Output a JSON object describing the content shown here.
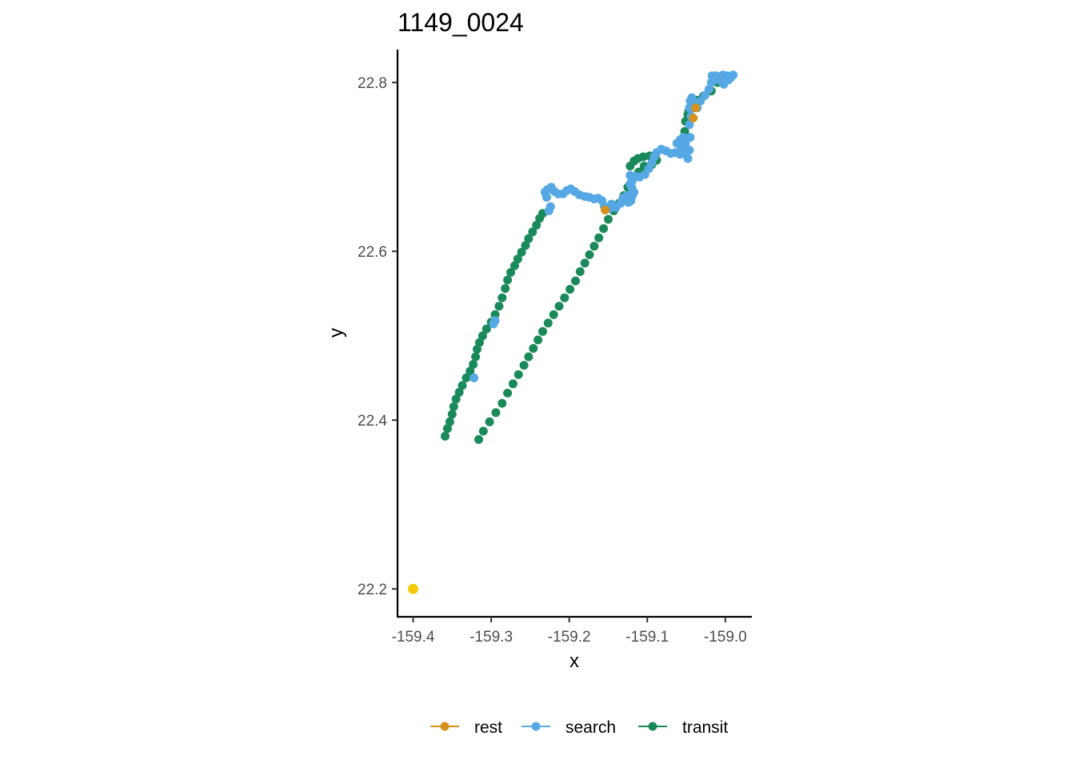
{
  "chart_data": {
    "type": "scatter",
    "title": "1149_0024",
    "xlabel": "x",
    "ylabel": "y",
    "xlim": [
      -159.42,
      -158.966
    ],
    "ylim": [
      22.167,
      22.839
    ],
    "x_ticks": [
      -159.4,
      -159.3,
      -159.2,
      -159.1,
      -159.0
    ],
    "x_tick_labels": [
      "-159.4",
      "-159.3",
      "-159.2",
      "-159.1",
      "-159.0"
    ],
    "y_ticks": [
      22.2,
      22.4,
      22.6,
      22.8
    ],
    "y_tick_labels": [
      "22.2",
      "22.4",
      "22.6",
      "22.8"
    ],
    "grid": false,
    "legend_position": "bottom",
    "colors": {
      "rest": "#D4921D",
      "search": "#56A8E4",
      "transit": "#1B8A5A",
      "origin": "#F5CA0B"
    },
    "legend": [
      {
        "label": "rest",
        "color": "#D4921D"
      },
      {
        "label": "search",
        "color": "#56A8E4"
      },
      {
        "label": "transit",
        "color": "#1B8A5A"
      }
    ],
    "extra_points": [
      {
        "x": -159.4,
        "y": 22.2,
        "color": "#F5CA0B"
      }
    ],
    "series": [
      {
        "name": "transit",
        "color": "#1B8A5A",
        "points": [
          [
            -159.359,
            22.381
          ],
          [
            -159.356,
            22.39
          ],
          [
            -159.353,
            22.398
          ],
          [
            -159.35,
            22.407
          ],
          [
            -159.348,
            22.416
          ],
          [
            -159.345,
            22.425
          ],
          [
            -159.341,
            22.433
          ],
          [
            -159.337,
            22.441
          ],
          [
            -159.332,
            22.45
          ],
          [
            -159.327,
            22.458
          ],
          [
            -159.323,
            22.466
          ],
          [
            -159.32,
            22.475
          ],
          [
            -159.318,
            22.484
          ],
          [
            -159.315,
            22.492
          ],
          [
            -159.311,
            22.5
          ],
          [
            -159.306,
            22.508
          ],
          [
            -159.3,
            22.516
          ],
          [
            -159.295,
            22.525
          ],
          [
            -159.29,
            22.535
          ],
          [
            -159.286,
            22.545
          ],
          [
            -159.282,
            22.556
          ],
          [
            -159.279,
            22.566
          ],
          [
            -159.275,
            22.575
          ],
          [
            -159.27,
            22.583
          ],
          [
            -159.266,
            22.591
          ],
          [
            -159.261,
            22.599
          ],
          [
            -159.256,
            22.607
          ],
          [
            -159.252,
            22.615
          ],
          [
            -159.247,
            22.623
          ],
          [
            -159.242,
            22.631
          ],
          [
            -159.238,
            22.639
          ],
          [
            -159.234,
            22.645
          ],
          [
            -159.316,
            22.377
          ],
          [
            -159.31,
            22.387
          ],
          [
            -159.302,
            22.398
          ],
          [
            -159.294,
            22.409
          ],
          [
            -159.286,
            22.42
          ],
          [
            -159.279,
            22.432
          ],
          [
            -159.272,
            22.443
          ],
          [
            -159.265,
            22.454
          ],
          [
            -159.258,
            22.465
          ],
          [
            -159.252,
            22.475
          ],
          [
            -159.246,
            22.485
          ],
          [
            -159.24,
            22.495
          ],
          [
            -159.234,
            22.505
          ],
          [
            -159.227,
            22.515
          ],
          [
            -159.22,
            22.525
          ],
          [
            -159.213,
            22.535
          ],
          [
            -159.206,
            22.545
          ],
          [
            -159.199,
            22.555
          ],
          [
            -159.192,
            22.565
          ],
          [
            -159.186,
            22.576
          ],
          [
            -159.18,
            22.586
          ],
          [
            -159.174,
            22.596
          ],
          [
            -159.168,
            22.606
          ],
          [
            -159.162,
            22.616
          ],
          [
            -159.156,
            22.627
          ],
          [
            -159.15,
            22.638
          ],
          [
            -159.143,
            22.648
          ],
          [
            -159.136,
            22.657
          ],
          [
            -159.13,
            22.666
          ],
          [
            -159.125,
            22.676
          ],
          [
            -159.119,
            22.685
          ],
          [
            -159.111,
            22.694
          ],
          [
            -159.104,
            22.701
          ],
          [
            -159.094,
            22.703
          ],
          [
            -159.088,
            22.708
          ],
          [
            -159.097,
            22.713
          ],
          [
            -159.105,
            22.712
          ],
          [
            -159.112,
            22.71
          ],
          [
            -159.117,
            22.707
          ],
          [
            -159.122,
            22.701
          ],
          [
            -159.053,
            22.733
          ],
          [
            -159.052,
            22.742
          ],
          [
            -159.051,
            22.754
          ],
          [
            -159.048,
            22.762
          ],
          [
            -159.047,
            22.766
          ],
          [
            -159.044,
            22.773
          ],
          [
            -159.036,
            22.779
          ],
          [
            -159.028,
            22.784
          ],
          [
            -159.018,
            22.79
          ],
          [
            -159.01,
            22.8
          ]
        ]
      },
      {
        "name": "search",
        "color": "#56A8E4",
        "points": [
          [
            -159.322,
            22.45
          ],
          [
            -159.297,
            22.514
          ],
          [
            -159.295,
            22.518
          ],
          [
            -159.226,
            22.648
          ],
          [
            -159.224,
            22.653
          ],
          [
            -159.229,
            22.664
          ],
          [
            -159.231,
            22.67
          ],
          [
            -159.228,
            22.673
          ],
          [
            -159.223,
            22.676
          ],
          [
            -159.219,
            22.671
          ],
          [
            -159.214,
            22.668
          ],
          [
            -159.208,
            22.668
          ],
          [
            -159.203,
            22.672
          ],
          [
            -159.198,
            22.674
          ],
          [
            -159.193,
            22.671
          ],
          [
            -159.187,
            22.667
          ],
          [
            -159.18,
            22.665
          ],
          [
            -159.174,
            22.664
          ],
          [
            -159.168,
            22.662
          ],
          [
            -159.163,
            22.663
          ],
          [
            -159.158,
            22.66
          ],
          [
            -159.155,
            22.653
          ],
          [
            -159.152,
            22.65
          ],
          [
            -159.148,
            22.651
          ],
          [
            -159.146,
            22.656
          ],
          [
            -159.14,
            22.652
          ],
          [
            -159.134,
            22.657
          ],
          [
            -159.131,
            22.663
          ],
          [
            -159.126,
            22.666
          ],
          [
            -159.124,
            22.658
          ],
          [
            -159.121,
            22.66
          ],
          [
            -159.119,
            22.666
          ],
          [
            -159.117,
            22.67
          ],
          [
            -159.12,
            22.676
          ],
          [
            -159.122,
            22.68
          ],
          [
            -159.119,
            22.684
          ],
          [
            -159.122,
            22.69
          ],
          [
            -159.116,
            22.689
          ],
          [
            -159.11,
            22.688
          ],
          [
            -159.103,
            22.691
          ],
          [
            -159.098,
            22.698
          ],
          [
            -159.094,
            22.705
          ],
          [
            -159.091,
            22.712
          ],
          [
            -159.088,
            22.717
          ],
          [
            -159.082,
            22.721
          ],
          [
            -159.076,
            22.719
          ],
          [
            -159.07,
            22.716
          ],
          [
            -159.064,
            22.717
          ],
          [
            -159.058,
            22.715
          ],
          [
            -159.055,
            22.716
          ],
          [
            -159.056,
            22.722
          ],
          [
            -159.062,
            22.728
          ],
          [
            -159.058,
            22.732
          ],
          [
            -159.054,
            22.735
          ],
          [
            -159.051,
            22.728
          ],
          [
            -159.05,
            22.72
          ],
          [
            -159.048,
            22.71
          ],
          [
            -159.046,
            22.72
          ],
          [
            -159.045,
            22.735
          ],
          [
            -159.046,
            22.75
          ],
          [
            -159.044,
            22.76
          ],
          [
            -159.046,
            22.77
          ],
          [
            -159.045,
            22.778
          ],
          [
            -159.043,
            22.782
          ],
          [
            -159.04,
            22.776
          ],
          [
            -159.036,
            22.77
          ],
          [
            -159.032,
            22.778
          ],
          [
            -159.026,
            22.785
          ],
          [
            -159.021,
            22.792
          ],
          [
            -159.018,
            22.8
          ],
          [
            -159.016,
            22.806
          ],
          [
            -159.012,
            22.808
          ],
          [
            -159.007,
            22.807
          ],
          [
            -159.003,
            22.809
          ],
          [
            -158.998,
            22.808
          ],
          [
            -158.993,
            22.806
          ],
          [
            -158.99,
            22.809
          ],
          [
            -158.996,
            22.803
          ],
          [
            -159.002,
            22.798
          ],
          [
            -159.008,
            22.803
          ],
          [
            -159.013,
            22.805
          ],
          [
            -159.017,
            22.808
          ]
        ]
      },
      {
        "name": "rest",
        "color": "#D4921D",
        "points": [
          [
            -159.154,
            22.649
          ],
          [
            -159.038,
            22.77
          ],
          [
            -159.041,
            22.758
          ]
        ]
      }
    ]
  }
}
